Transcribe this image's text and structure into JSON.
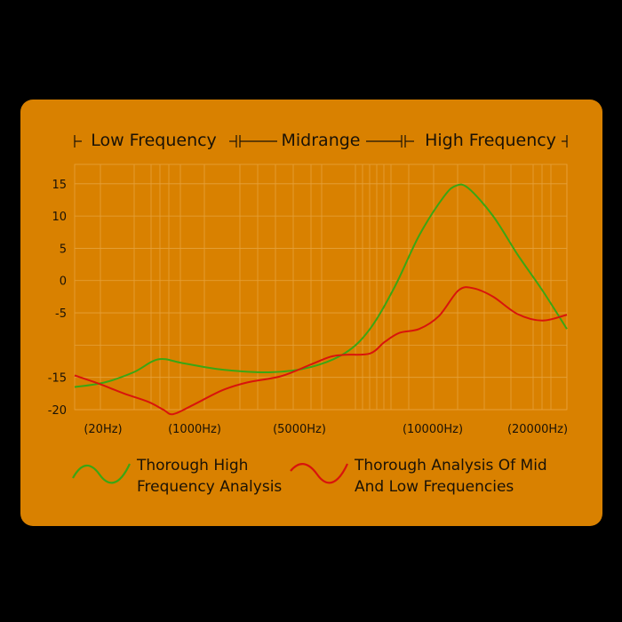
{
  "chart_data": {
    "type": "line",
    "bands": [
      {
        "label": "Low Frequency"
      },
      {
        "label": "Midrange"
      },
      {
        "label": "High Frequency"
      }
    ],
    "x_ticks": [
      "(20Hz)",
      "(1000Hz)",
      "(5000Hz)",
      "(10000Hz)",
      "(20000Hz)"
    ],
    "y_ticks": [
      15,
      10,
      5,
      0,
      -5,
      -15,
      -20
    ],
    "ylim": [
      -20,
      18
    ],
    "grid": true,
    "legend_placement": "bottom",
    "series": [
      {
        "name": "Thorough High Frequency Analysis",
        "color": "#3aa614",
        "points": [
          [
            0.0,
            -16.5
          ],
          [
            0.06,
            -15.8
          ],
          [
            0.12,
            -14.2
          ],
          [
            0.17,
            -12.2
          ],
          [
            0.22,
            -12.8
          ],
          [
            0.3,
            -13.8
          ],
          [
            0.4,
            -14.2
          ],
          [
            0.48,
            -13.4
          ],
          [
            0.55,
            -11.2
          ],
          [
            0.6,
            -7.5
          ],
          [
            0.65,
            -1.0
          ],
          [
            0.7,
            7.0
          ],
          [
            0.75,
            13.0
          ],
          [
            0.775,
            14.7
          ],
          [
            0.8,
            14.3
          ],
          [
            0.85,
            10.0
          ],
          [
            0.9,
            4.0
          ],
          [
            0.95,
            -1.5
          ],
          [
            1.0,
            -7.5
          ]
        ]
      },
      {
        "name": "Thorough Analysis Of Mid And Low Frequencies",
        "color": "#d8140c",
        "points": [
          [
            0.0,
            -14.7
          ],
          [
            0.05,
            -16.0
          ],
          [
            0.1,
            -17.5
          ],
          [
            0.15,
            -18.8
          ],
          [
            0.18,
            -20.0
          ],
          [
            0.2,
            -20.7
          ],
          [
            0.24,
            -19.3
          ],
          [
            0.3,
            -17.0
          ],
          [
            0.35,
            -15.8
          ],
          [
            0.42,
            -14.8
          ],
          [
            0.48,
            -13.0
          ],
          [
            0.52,
            -11.8
          ],
          [
            0.55,
            -11.5
          ],
          [
            0.6,
            -11.3
          ],
          [
            0.63,
            -9.5
          ],
          [
            0.66,
            -8.1
          ],
          [
            0.7,
            -7.5
          ],
          [
            0.74,
            -5.5
          ],
          [
            0.78,
            -1.5
          ],
          [
            0.81,
            -1.2
          ],
          [
            0.85,
            -2.5
          ],
          [
            0.9,
            -5.2
          ],
          [
            0.95,
            -6.2
          ],
          [
            1.0,
            -5.3
          ]
        ]
      }
    ]
  }
}
